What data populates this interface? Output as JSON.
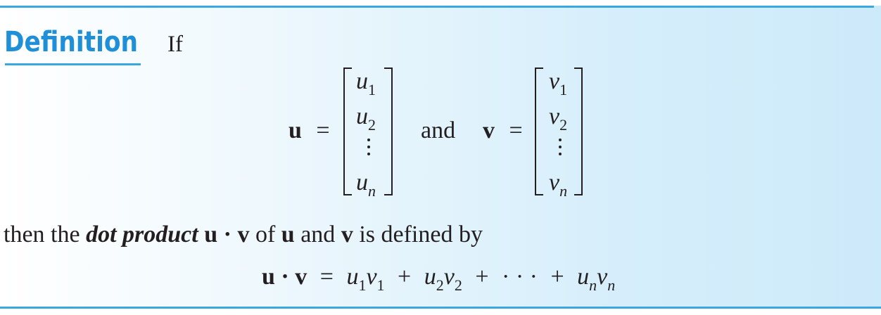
{
  "definition": {
    "heading": "Definition",
    "intro": "If",
    "u_vector": {
      "name": "u",
      "equals": "=",
      "entries": [
        {
          "base": "u",
          "sub": "1"
        },
        {
          "base": "u",
          "sub": "2"
        },
        {
          "base": "u",
          "sub": "n"
        }
      ]
    },
    "and_word": "and",
    "v_vector": {
      "name": "v",
      "equals": "=",
      "entries": [
        {
          "base": "v",
          "sub": "1"
        },
        {
          "base": "v",
          "sub": "2"
        },
        {
          "base": "v",
          "sub": "n"
        }
      ]
    },
    "sentence": {
      "part1": "then the ",
      "term": "dot product",
      "expr_u": "u",
      "dot": "·",
      "expr_v": "v",
      "part2": " of ",
      "u": "u",
      "part3": " and ",
      "v": "v",
      "part4": " is defined by"
    },
    "formula": {
      "lhs_u": "u",
      "dot": "·",
      "lhs_v": "v",
      "equals": "=",
      "plus": "+",
      "ellipsis": "· · ·",
      "terms": [
        {
          "a": "u",
          "as": "1",
          "b": "v",
          "bs": "1"
        },
        {
          "a": "u",
          "as": "2",
          "b": "v",
          "bs": "2"
        },
        {
          "a": "u",
          "as": "n",
          "b": "v",
          "bs": "n"
        }
      ]
    }
  },
  "colors": {
    "accent": "#3aa8df",
    "heading": "#1f8fd8",
    "text": "#231f20"
  }
}
